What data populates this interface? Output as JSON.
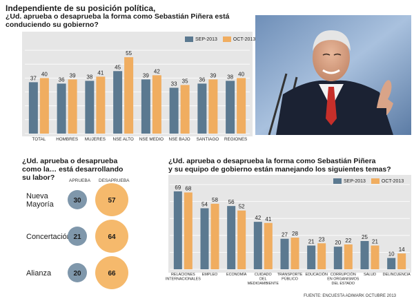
{
  "colors": {
    "sep": "#5b7990",
    "oct": "#f0ad60",
    "panel": "#e6e6e6",
    "grid": "#ffffff",
    "circle_blue": "#7f97ab",
    "circle_orange": "#f5b96c"
  },
  "top": {
    "title_line1": "Independiente de su posición política,",
    "title_line2": "¿Ud. aprueba o desaprueba la forma como Sebastián Piñera está",
    "title_line3": "conduciendo su gobierno?"
  },
  "bottom_left": {
    "title_line1": "¿Ud. aprueba o desaprueba",
    "title_line2": "como la… está desarrollando",
    "title_line3": "su labor?",
    "header_aprueba": "APRUEBA",
    "header_desaprueba": "DESAPRUEBA",
    "rows": [
      {
        "label_line1": "Nueva",
        "label_line2": "Mayoría",
        "aprueba": "30",
        "desaprueba": "57"
      },
      {
        "label_line1": "Concertación",
        "label_line2": "",
        "aprueba": "21",
        "desaprueba": "64"
      },
      {
        "label_line1": "Alianza",
        "label_line2": "",
        "aprueba": "20",
        "desaprueba": "66"
      }
    ]
  },
  "bottom_right": {
    "title_line1": "¿Ud. aprueba o desaprueba la forma como Sebastián Piñera",
    "title_line2": "y su equipo de gobierno están manejando los siguientes temas?"
  },
  "source": "FUENTE: ENCUESTA ADIMARK OCTUBRE 2013",
  "chart_data": [
    {
      "type": "bar",
      "categories": [
        "TOTAL",
        "HOMBRES",
        "MUJERES",
        "NSE ALTO",
        "NSE MEDIO",
        "NSE BAJO",
        "SANTIAGO",
        "REGIONES"
      ],
      "series": [
        {
          "name": "SEP-2013",
          "values": [
            37,
            36,
            38,
            45,
            39,
            33,
            36,
            38
          ]
        },
        {
          "name": "OCT-2013",
          "values": [
            40,
            39,
            41,
            55,
            42,
            35,
            39,
            40
          ]
        }
      ],
      "ylim": [
        0,
        60
      ],
      "grid": true,
      "legend": "top-right"
    },
    {
      "type": "bar",
      "categories": [
        [
          "RELACIONES",
          "INTERNACIONALES"
        ],
        [
          "EMPLEO"
        ],
        [
          "ECONOMÍA"
        ],
        [
          "CUIDADO",
          "DEL",
          "MEDIOAMBIENTE"
        ],
        [
          "TRANSPORTE",
          "PÚBLICO"
        ],
        [
          "EDUCACIÓN"
        ],
        [
          "CORRUPCIÓN",
          "EN ORGANISMOS",
          "DEL ESTADO"
        ],
        [
          "SALUD"
        ],
        [
          "DELINCUENCIA"
        ]
      ],
      "series": [
        {
          "name": "SEP-2013",
          "values": [
            69,
            54,
            56,
            42,
            27,
            21,
            20,
            25,
            10
          ]
        },
        {
          "name": "OCT-2013",
          "values": [
            68,
            58,
            52,
            41,
            28,
            23,
            22,
            21,
            14
          ]
        }
      ],
      "ylim": [
        0,
        75
      ],
      "grid": true,
      "legend": "top-right"
    }
  ]
}
